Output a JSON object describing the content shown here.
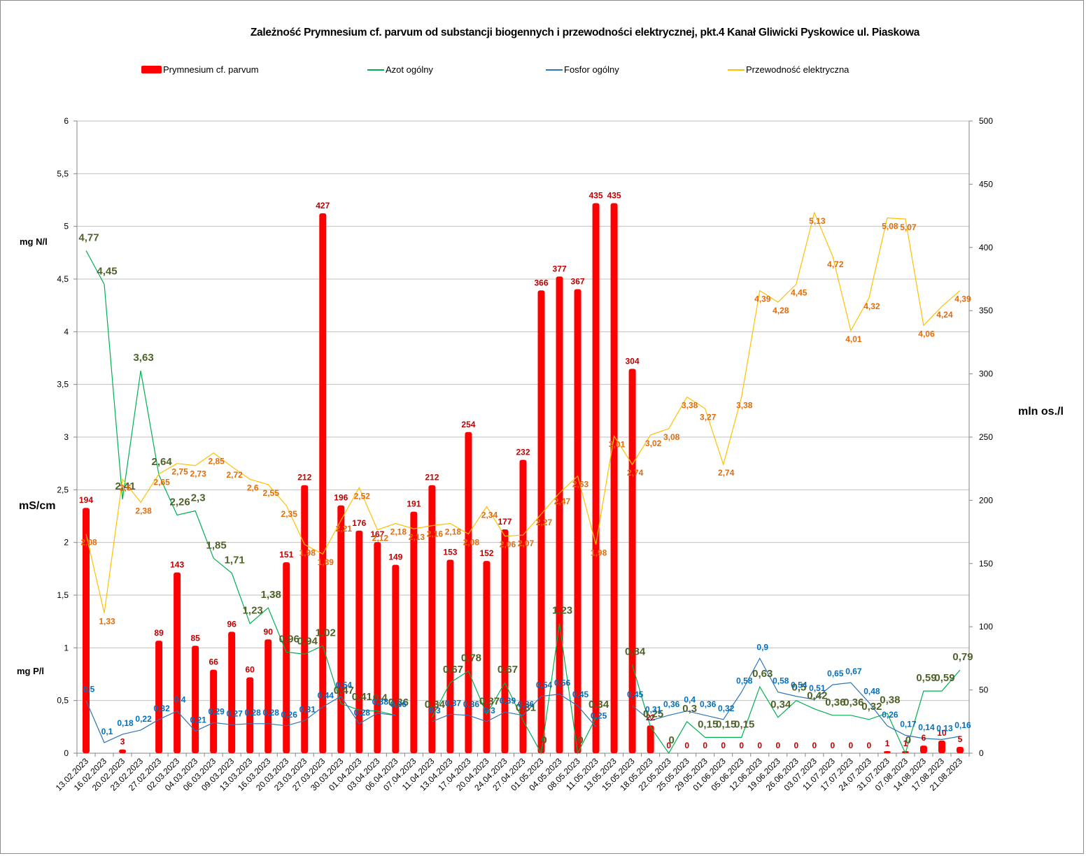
{
  "chart_data": {
    "type": "bar",
    "title": "Zależność Prymnesium cf. parvum  od substancji biogennych i przewodności elektrycznej, pkt.4 Kanał Gliwicki Pyskowice ul. Piaskowa",
    "categories": [
      "13.02.2023",
      "16.02.2023",
      "20.02.2023",
      "23.02.2023",
      "27.02.2023",
      "02.03.2023",
      "04.03.2023",
      "06.03.2023",
      "09.03.2023",
      "13.03.2023",
      "16.03.2023",
      "20.03.2023",
      "23.03.2023",
      "27.03.2023",
      "30.03.2023",
      "01.04.2023",
      "03.04.2023",
      "06.04.2023",
      "07.04.2023",
      "11.04.2023",
      "13.04.2023",
      "17.04.2023",
      "20.04.2023",
      "24.04.2023",
      "27.04.2023",
      "01.05.2023",
      "04.05.2023",
      "08.05.2023",
      "11.05.2023",
      "13.05.2023",
      "15.05.2023",
      "18.05.2023",
      "22.05.2023",
      "25.05.2023",
      "29.05.2023",
      "01.06.2023",
      "05.06.2023",
      "12.06.2023",
      "19.06.2023",
      "26.06.2023",
      "03.07.2023",
      "11.07.2023",
      "17.07.2023",
      "24.07.2023",
      "31.07.2023",
      "07.08.2023",
      "14.08.2023",
      "17.08.2023",
      "21.08.2023"
    ],
    "series": [
      {
        "name": "Prymnesium cf. parvum",
        "type": "bar",
        "axis": "right",
        "color": "#ff0000",
        "label_color": "#c00000",
        "values": [
          194,
          null,
          3,
          null,
          89,
          143,
          85,
          66,
          96,
          60,
          90,
          151,
          212,
          427,
          196,
          176,
          167,
          149,
          191,
          212,
          153,
          254,
          152,
          177,
          232,
          366,
          377,
          367,
          435,
          435,
          304,
          22,
          0,
          0,
          0,
          0,
          0,
          0,
          0,
          0,
          0,
          0,
          0,
          0,
          1,
          1,
          6,
          10,
          5
        ]
      },
      {
        "name": "Azot ogólny",
        "type": "line",
        "axis": "left",
        "color": "#00b050",
        "label_color": "#4f6228",
        "values": [
          4.77,
          4.45,
          2.41,
          3.63,
          2.64,
          2.26,
          2.3,
          1.85,
          1.71,
          1.23,
          1.38,
          0.96,
          0.94,
          1.02,
          0.47,
          0.41,
          0.4,
          0.36,
          null,
          0.34,
          0.67,
          0.78,
          0.37,
          0.67,
          0.31,
          0,
          1.23,
          0,
          0.34,
          null,
          0.84,
          0.25,
          0,
          0.3,
          0.15,
          0.15,
          0.15,
          0.63,
          0.34,
          0.5,
          0.42,
          0.36,
          0.36,
          0.32,
          0.38,
          0,
          0.59,
          0.59,
          0.79
        ]
      },
      {
        "name": "Fosfor ogólny",
        "type": "line",
        "axis": "left",
        "color": "#2e75b6",
        "label_color": "#0070c0",
        "values": [
          0.5,
          0.1,
          0.18,
          0.22,
          0.32,
          0.4,
          0.21,
          0.29,
          0.27,
          0.28,
          0.28,
          0.26,
          0.31,
          0.44,
          0.54,
          0.28,
          0.38,
          0.36,
          null,
          0.3,
          0.37,
          0.36,
          0.3,
          0.39,
          0.36,
          0.54,
          0.56,
          0.45,
          0.25,
          null,
          0.45,
          0.31,
          0.36,
          0.4,
          0.36,
          0.32,
          0.58,
          0.9,
          0.58,
          0.54,
          0.51,
          0.65,
          0.67,
          0.48,
          0.26,
          0.17,
          0.14,
          0.13,
          0.16
        ]
      },
      {
        "name": "Przewodność elektryczna",
        "type": "line",
        "axis": "left",
        "color": "#ffc000",
        "label_color": "#e36c09",
        "values": [
          2.08,
          1.33,
          2.6,
          2.38,
          2.65,
          2.75,
          2.73,
          2.85,
          2.72,
          2.6,
          2.55,
          2.35,
          1.98,
          1.89,
          2.21,
          2.52,
          2.12,
          2.18,
          2.13,
          2.16,
          2.18,
          2.08,
          2.34,
          2.06,
          2.07,
          2.27,
          2.47,
          2.63,
          1.98,
          3.01,
          2.74,
          3.02,
          3.08,
          3.38,
          3.27,
          2.74,
          3.38,
          4.39,
          4.28,
          4.45,
          5.13,
          4.72,
          4.01,
          4.32,
          5.08,
          5.07,
          4.06,
          4.24,
          4.39
        ]
      }
    ],
    "left_axis": {
      "ylim": [
        0,
        6
      ],
      "ticks": [
        "0",
        "0,5",
        "1",
        "1,5",
        "2",
        "2,5",
        "3",
        "3,5",
        "4",
        "4,5",
        "5",
        "5,5",
        "6"
      ],
      "unit_labels": [
        {
          "text": "mg N/l",
          "color": "#00b050"
        },
        {
          "text": "mS/cm",
          "color": "#e36c09"
        },
        {
          "text": "mg P/l",
          "color": "#0070c0"
        }
      ]
    },
    "right_axis": {
      "ylim": [
        0,
        500
      ],
      "ticks": [
        "0",
        "50",
        "100",
        "150",
        "200",
        "250",
        "300",
        "350",
        "400",
        "450",
        "500"
      ],
      "unit_label": {
        "text": "mln os./l",
        "color": "#ff0000"
      }
    },
    "grid": true,
    "legend_position": "top"
  },
  "legend": [
    {
      "label": "Prymnesium cf. parvum",
      "kind": "bar",
      "color": "#ff0000"
    },
    {
      "label": "Azot ogólny",
      "kind": "line",
      "color": "#00b050"
    },
    {
      "label": "Fosfor ogólny",
      "kind": "line",
      "color": "#2e75b6"
    },
    {
      "label": "Przewodność elektryczna",
      "kind": "line",
      "color": "#ffc000"
    }
  ]
}
